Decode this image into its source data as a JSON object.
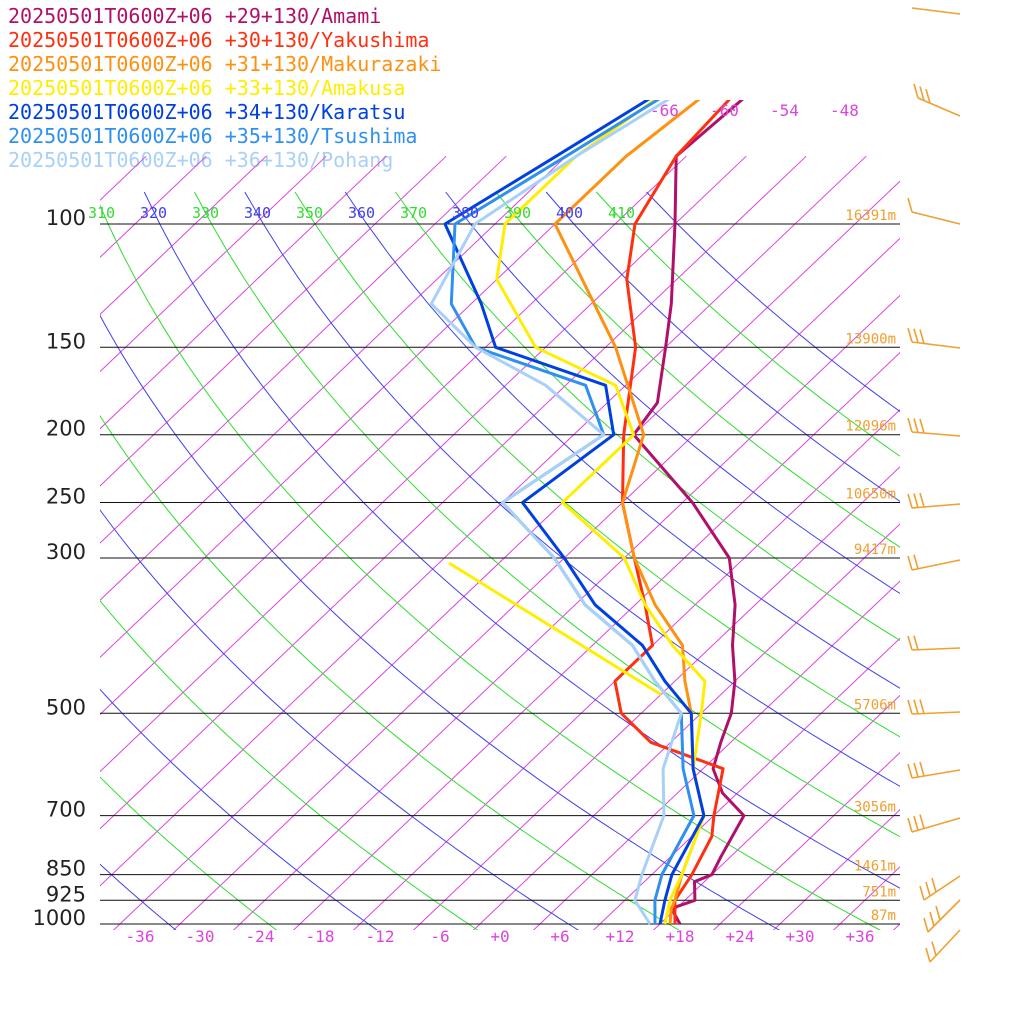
{
  "chart_data": {
    "type": "line",
    "subtype": "skew-T log-P sounding",
    "title": "",
    "legend_position": "top-left",
    "pressure_levels": [
      100,
      150,
      200,
      250,
      300,
      500,
      700,
      850,
      925,
      1000
    ],
    "level_heights": [
      "16391m",
      "13900m",
      "12096m",
      "10650m",
      "9417m",
      "5706m",
      "3056m",
      "1461m",
      "751m",
      "87m"
    ],
    "temperature_ticks": [
      "-36",
      "-30",
      "-24",
      "-18",
      "-12",
      "-6",
      "+0",
      "+6",
      "+12",
      "+18",
      "+24",
      "+30",
      "+36"
    ],
    "theta_labels": [
      "310",
      "320",
      "330",
      "340",
      "350",
      "360",
      "370",
      "380",
      "390",
      "400",
      "410"
    ],
    "mixing_labels": [
      "-66",
      "-60",
      "-54",
      "-48"
    ],
    "x_range_at_1000hPa": [
      -40,
      40
    ],
    "y_range_hPa": [
      1000,
      100
    ],
    "series": [
      {
        "name": "20250501T0600Z+06 +29+130/Amami",
        "color": "#b0106a",
        "points": [
          [
            1000,
            18
          ],
          [
            950,
            15.5
          ],
          [
            925,
            17
          ],
          [
            870,
            15
          ],
          [
            850,
            16
          ],
          [
            800,
            15
          ],
          [
            700,
            13
          ],
          [
            650,
            8.5
          ],
          [
            600,
            5
          ],
          [
            550,
            3
          ],
          [
            500,
            1
          ],
          [
            450,
            -2
          ],
          [
            400,
            -6
          ],
          [
            350,
            -10
          ],
          [
            300,
            -15.5
          ],
          [
            250,
            -25
          ],
          [
            200,
            -38
          ],
          [
            180,
            -39
          ],
          [
            150,
            -44
          ],
          [
            130,
            -48
          ],
          [
            100,
            -56
          ],
          [
            80,
            -63
          ],
          [
            60,
            -62
          ]
        ]
      },
      {
        "name": "20250501T0600Z+06 +30+130/Yakushima",
        "color": "#ff3010",
        "points": [
          [
            1000,
            17.5
          ],
          [
            925,
            15
          ],
          [
            850,
            14
          ],
          [
            750,
            12
          ],
          [
            700,
            10
          ],
          [
            600,
            6
          ],
          [
            550,
            -4
          ],
          [
            500,
            -10
          ],
          [
            450,
            -14
          ],
          [
            400,
            -14
          ],
          [
            350,
            -19
          ],
          [
            300,
            -25
          ],
          [
            250,
            -32
          ],
          [
            200,
            -39
          ],
          [
            150,
            -47
          ],
          [
            120,
            -55
          ],
          [
            100,
            -60
          ],
          [
            80,
            -63
          ],
          [
            60,
            -64
          ]
        ]
      },
      {
        "name": "20250501T0600Z+06 +31+130/Makurazaki",
        "color": "#ff9010",
        "points": [
          [
            1000,
            17
          ],
          [
            950,
            15.5
          ],
          [
            925,
            15
          ],
          [
            850,
            13
          ],
          [
            700,
            9
          ],
          [
            600,
            3
          ],
          [
            500,
            -3
          ],
          [
            450,
            -7
          ],
          [
            400,
            -11
          ],
          [
            350,
            -18
          ],
          [
            300,
            -25
          ],
          [
            250,
            -32
          ],
          [
            200,
            -37
          ],
          [
            150,
            -49
          ],
          [
            100,
            -68
          ],
          [
            80,
            -68
          ],
          [
            60,
            -66
          ]
        ]
      },
      {
        "name": "20250501T0600Z+06 +33+130/Amakusa",
        "color": "#ffee00",
        "points": [
          [
            1000,
            16.5
          ],
          [
            925,
            14.5
          ],
          [
            850,
            13
          ],
          [
            700,
            9
          ],
          [
            600,
            3
          ],
          [
            500,
            -2
          ],
          [
            450,
            -5
          ],
          [
            400,
            -12
          ],
          [
            350,
            -19
          ],
          [
            300,
            -26
          ],
          [
            250,
            -38
          ],
          [
            200,
            -38
          ],
          [
            170,
            -45
          ],
          [
            150,
            -57
          ],
          [
            120,
            -68
          ],
          [
            100,
            -73
          ],
          [
            80,
            -73
          ],
          [
            60,
            -70
          ]
        ]
      },
      {
        "name": "20250501T0600Z+06 +34+130/Karatsu",
        "color": "#0040e0",
        "points": [
          [
            1000,
            16
          ],
          [
            925,
            14
          ],
          [
            850,
            12
          ],
          [
            700,
            9
          ],
          [
            600,
            3
          ],
          [
            500,
            -3
          ],
          [
            450,
            -9
          ],
          [
            400,
            -15
          ],
          [
            350,
            -24
          ],
          [
            300,
            -32
          ],
          [
            250,
            -42
          ],
          [
            200,
            -40
          ],
          [
            170,
            -46
          ],
          [
            150,
            -61
          ],
          [
            130,
            -67
          ],
          [
            100,
            -79
          ],
          [
            80,
            -75
          ],
          [
            60,
            -70
          ]
        ]
      },
      {
        "name": "20250501T0600Z+06 +35+130/Tsushima",
        "color": "#3090f0",
        "points": [
          [
            1000,
            15.5
          ],
          [
            925,
            13
          ],
          [
            850,
            11
          ],
          [
            700,
            8
          ],
          [
            600,
            2
          ],
          [
            500,
            -4
          ],
          [
            450,
            -10
          ],
          [
            400,
            -16
          ],
          [
            350,
            -25
          ],
          [
            300,
            -33
          ],
          [
            250,
            -44
          ],
          [
            200,
            -41
          ],
          [
            170,
            -48
          ],
          [
            150,
            -63
          ],
          [
            130,
            -70
          ],
          [
            100,
            -78
          ],
          [
            80,
            -74
          ],
          [
            60,
            -69
          ]
        ]
      },
      {
        "name": "20250501T0600Z+06 +36+130/Pohang",
        "color": "#a8d0f8",
        "points": [
          [
            1000,
            15
          ],
          [
            925,
            11
          ],
          [
            850,
            9
          ],
          [
            700,
            5
          ],
          [
            600,
            0
          ],
          [
            500,
            -4
          ],
          [
            450,
            -10
          ],
          [
            400,
            -16
          ],
          [
            350,
            -25
          ],
          [
            300,
            -33
          ],
          [
            250,
            -44
          ],
          [
            200,
            -41
          ],
          [
            170,
            -52
          ],
          [
            150,
            -63
          ],
          [
            130,
            -72
          ],
          [
            100,
            -76
          ],
          [
            80,
            -73
          ],
          [
            60,
            -68
          ]
        ]
      }
    ],
    "amakusa_spur": [
      [
        470,
        -8
      ],
      [
        305,
        -43
      ]
    ]
  }
}
